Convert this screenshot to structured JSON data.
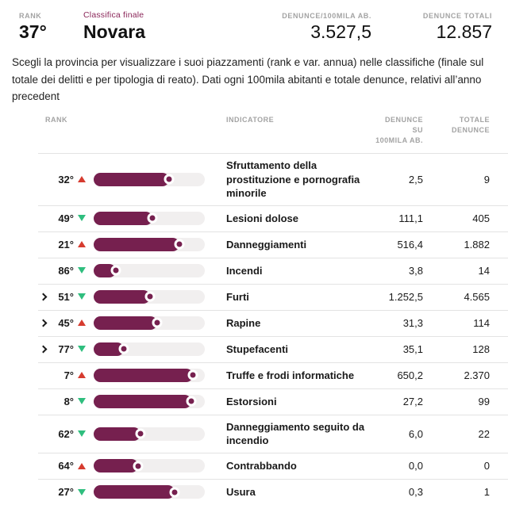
{
  "summary": {
    "rank_label": "RANK",
    "rank_value": "37°",
    "classifica_label": "Classifica finale",
    "province": "Novara",
    "per100k_label": "DENUNCE/100MILA AB.",
    "per100k_value": "3.527,5",
    "total_label": "DENUNCE TOTALI",
    "total_value": "12.857"
  },
  "description": "Scegli la provincia per visualizzare i suoi piazzamenti (rank e var. annua) nelle classifiche (finale sul totale dei delitti e per tipologia di reato). Dati ogni 100mila abitanti e totale denunce, relativi all’anno precedent",
  "table": {
    "col_rank": "RANK",
    "col_indicator": "INDICATORE",
    "col_per100k_line1": "DENUNCE SU",
    "col_per100k_line2": "100MILA AB.",
    "col_total_line1": "TOTALE",
    "col_total_line2": "DENUNCE"
  },
  "colors": {
    "bar": "#76204f",
    "trend_up": "#d63b2f",
    "trend_down": "#2fbe7e"
  },
  "rows": [
    {
      "expandable": false,
      "rank": "32°",
      "trend": "up",
      "bar_pct": 68,
      "indicator": "Sfruttamento della prostituzione e pornografia minorile",
      "per_100k": "2,5",
      "total": "9"
    },
    {
      "expandable": false,
      "rank": "49°",
      "trend": "down",
      "bar_pct": 53,
      "indicator": "Lesioni dolose",
      "per_100k": "111,1",
      "total": "405"
    },
    {
      "expandable": false,
      "rank": "21°",
      "trend": "up",
      "bar_pct": 77,
      "indicator": "Danneggiamenti",
      "per_100k": "516,4",
      "total": "1.882"
    },
    {
      "expandable": false,
      "rank": "86°",
      "trend": "down",
      "bar_pct": 20,
      "indicator": "Incendi",
      "per_100k": "3,8",
      "total": "14"
    },
    {
      "expandable": true,
      "rank": "51°",
      "trend": "down",
      "bar_pct": 51,
      "indicator": "Furti",
      "per_100k": "1.252,5",
      "total": "4.565"
    },
    {
      "expandable": true,
      "rank": "45°",
      "trend": "up",
      "bar_pct": 57,
      "indicator": "Rapine",
      "per_100k": "31,3",
      "total": "114"
    },
    {
      "expandable": true,
      "rank": "77°",
      "trend": "down",
      "bar_pct": 27,
      "indicator": "Stupefacenti",
      "per_100k": "35,1",
      "total": "128"
    },
    {
      "expandable": false,
      "rank": "7°",
      "trend": "up",
      "bar_pct": 89,
      "indicator": "Truffe e frodi informatiche",
      "per_100k": "650,2",
      "total": "2.370"
    },
    {
      "expandable": false,
      "rank": "8°",
      "trend": "down",
      "bar_pct": 88,
      "indicator": "Estorsioni",
      "per_100k": "27,2",
      "total": "99"
    },
    {
      "expandable": false,
      "rank": "62°",
      "trend": "down",
      "bar_pct": 42,
      "indicator": "Danneggiamento seguito da incendio",
      "per_100k": "6,0",
      "total": "22"
    },
    {
      "expandable": false,
      "rank": "64°",
      "trend": "up",
      "bar_pct": 40,
      "indicator": "Contrabbando",
      "per_100k": "0,0",
      "total": "0"
    },
    {
      "expandable": false,
      "rank": "27°",
      "trend": "down",
      "bar_pct": 73,
      "indicator": "Usura",
      "per_100k": "0,3",
      "total": "1"
    }
  ]
}
